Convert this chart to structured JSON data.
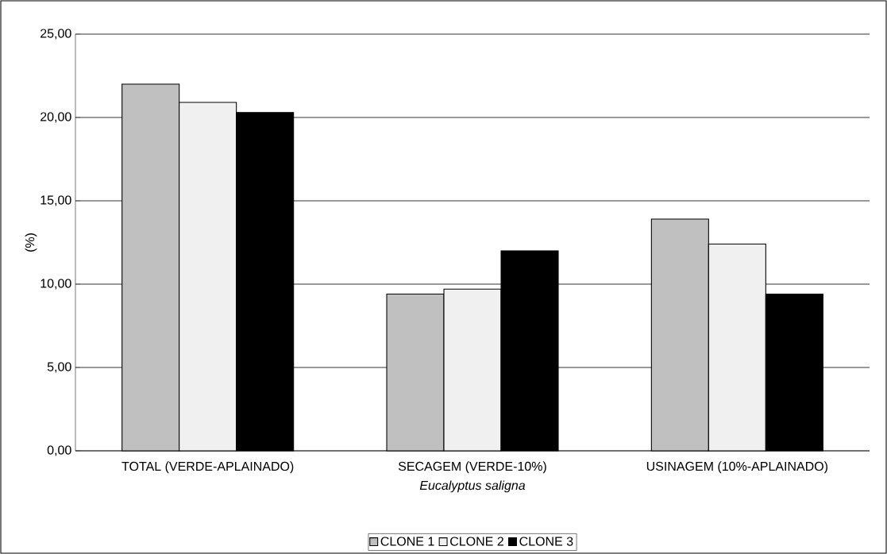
{
  "chart_data": {
    "type": "bar",
    "xlabel": "Eucalyptus saligna",
    "ylabel": "(%)",
    "categories": [
      "TOTAL (VERDE-APLAINADO)",
      "SECAGEM (VERDE-10%)",
      "USINAGEM (10%-APLAINADO)"
    ],
    "series": [
      {
        "name": "CLONE 1",
        "color": "#c0c0c0",
        "values": [
          22.0,
          9.4,
          13.9
        ]
      },
      {
        "name": "CLONE 2",
        "color": "#f0f0f0",
        "values": [
          20.9,
          9.7,
          12.4
        ]
      },
      {
        "name": "CLONE 3",
        "color": "#000000",
        "values": [
          20.3,
          12.0,
          9.4
        ]
      }
    ],
    "ylim": [
      0,
      25
    ],
    "yticks": [
      {
        "value": 0,
        "label": "0,00"
      },
      {
        "value": 5,
        "label": "5,00"
      },
      {
        "value": 10,
        "label": "10,00"
      },
      {
        "value": 15,
        "label": "15,00"
      },
      {
        "value": 20,
        "label": "20,00"
      },
      {
        "value": 25,
        "label": "25,00"
      }
    ],
    "grid": "y",
    "legend": "bottom"
  }
}
